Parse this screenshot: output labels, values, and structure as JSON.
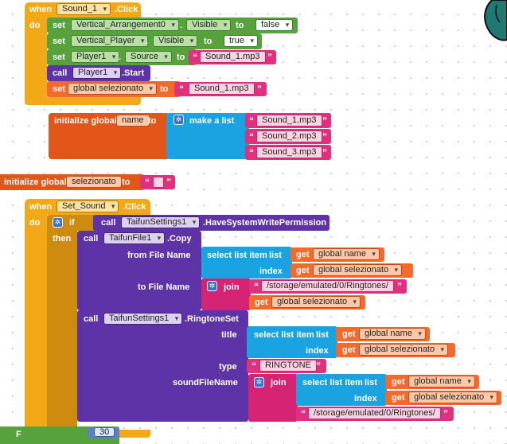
{
  "event1": {
    "when": "when",
    "component": "Sound_1",
    "event": ".Click",
    "do": "do",
    "rows": [
      {
        "set": "set",
        "component": "Vertical_Arrangement0",
        "dot": ".",
        "prop": "Visible",
        "to": "to",
        "value": "false"
      },
      {
        "set": "set",
        "component": "Vertical_Player",
        "dot": ".",
        "prop": "Visible",
        "to": "to",
        "value": "true"
      },
      {
        "set": "set",
        "component": "Player1",
        "dot": ".",
        "prop": "Source",
        "to": "to",
        "value": "Sound_1.mp3"
      }
    ],
    "call": {
      "call": "call",
      "component": "Player1",
      "method": ".Start"
    },
    "setglobal": {
      "set": "set",
      "var": "global selezionato",
      "to": "to",
      "value": "Sound_1.mp3"
    }
  },
  "initName": {
    "label": "initialize global",
    "name": "name",
    "to": "to",
    "make": "make a list",
    "items": [
      "Sound_1.mp3",
      "Sound_2.mp3",
      "Sound_3.mp3"
    ]
  },
  "initSel": {
    "label": "initialize global",
    "name": "selezionato",
    "to": "to"
  },
  "event2": {
    "when": "when",
    "component": "Set_Sound",
    "event": ".Click",
    "do": "do",
    "if": "if",
    "then": "then",
    "cond": {
      "call": "call",
      "component": "TaifunSettings1",
      "method": ".HaveSystemWritePermission"
    },
    "copy": {
      "call": "call",
      "component": "TaifunFile1",
      "method": ".Copy",
      "from": "from File Name",
      "tofile": "to File Name",
      "select": "select list item",
      "list": "list",
      "index": "index",
      "get": "get",
      "gname": "global name",
      "gsel": "global selezionato",
      "join": "join",
      "path": "/storage/emulated/0/Ringtones/"
    },
    "ring": {
      "call": "call",
      "component": "TaifunSettings1",
      "method": ".RingtoneSet",
      "title": "title",
      "index": "index",
      "type": "type",
      "typeval": "RINGTONE",
      "sfn": "soundFileName",
      "select": "select list item",
      "list": "list",
      "get": "get",
      "gname": "global name",
      "gsel": "global selezionato",
      "join": "join",
      "path": "/storage/emulated/0/Ringtones/"
    }
  },
  "bottom": {
    "label": "F",
    "num": "30"
  }
}
